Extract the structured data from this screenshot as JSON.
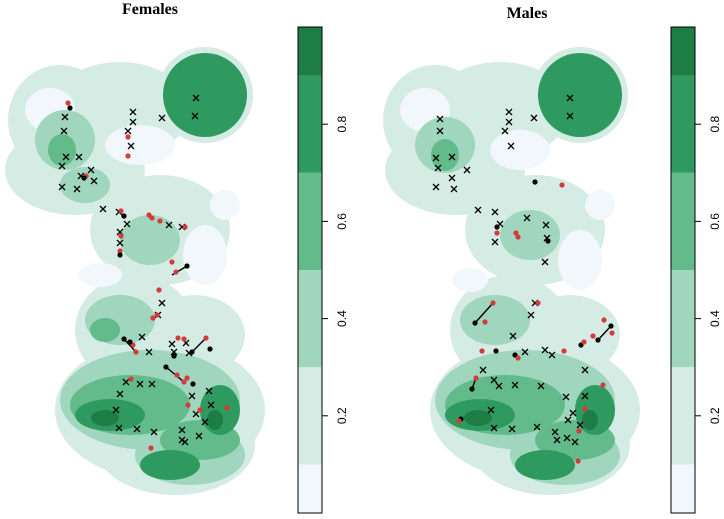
{
  "chart_data": [
    {
      "type": "heatmap",
      "title": "Females",
      "xlabel": "",
      "ylabel": "",
      "grid": false,
      "legend": "right",
      "colorbar": {
        "breaks": [
          0.0,
          0.1,
          0.3,
          0.5,
          0.7,
          0.9,
          1.0
        ],
        "ticks": [
          0.2,
          0.4,
          0.6,
          0.8
        ],
        "tick_labels": [
          "0.2",
          "0.4",
          "0.6",
          "0.8"
        ],
        "colors": [
          "#f2f7fb",
          "#d4ece4",
          "#9fd6bd",
          "#63bb8c",
          "#2f9a5f",
          "#1e7c45",
          "#145c32"
        ]
      },
      "markers": {
        "absent_symbol": "x",
        "present_colors": [
          "#000000",
          "#d63b3b"
        ]
      }
    },
    {
      "type": "heatmap",
      "title": "Males",
      "xlabel": "",
      "ylabel": "",
      "grid": false,
      "legend": "right",
      "colorbar": {
        "breaks": [
          0.0,
          0.1,
          0.3,
          0.5,
          0.7,
          0.9,
          1.0
        ],
        "ticks": [
          0.2,
          0.4,
          0.6,
          0.8
        ],
        "tick_labels": [
          "0.2",
          "0.4",
          "0.6",
          "0.8"
        ],
        "colors": [
          "#f2f7fb",
          "#d4ece4",
          "#9fd6bd",
          "#63bb8c",
          "#2f9a5f",
          "#1e7c45",
          "#145c32"
        ]
      },
      "markers": {
        "absent_symbol": "x",
        "present_colors": [
          "#000000",
          "#d63b3b"
        ]
      }
    }
  ]
}
